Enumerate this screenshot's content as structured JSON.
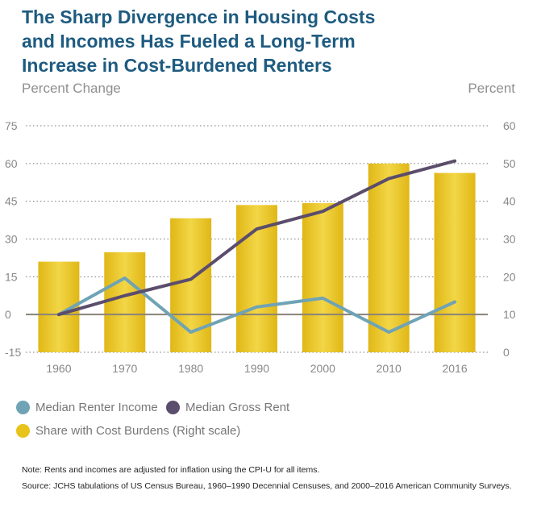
{
  "title_lines": [
    "The Sharp Divergence in Housing Costs",
    "and Incomes Has Fueled a Long-Term",
    "Increase in Cost-Burdened Renters"
  ],
  "left_axis_title": "Percent Change",
  "right_axis_title": "Percent",
  "chart_data": {
    "type": "bar",
    "title": "The Sharp Divergence in Housing Costs and Incomes Has Fueled a Long-Term Increase in Cost-Burdened Renters",
    "categories": [
      "1960",
      "1970",
      "1980",
      "1990",
      "2000",
      "2010",
      "2016"
    ],
    "left_axis": {
      "label": "Percent Change",
      "ticks": [
        "75",
        "60",
        "45",
        "30",
        "15",
        "0",
        "-15"
      ],
      "ylim": [
        -15,
        75
      ]
    },
    "right_axis": {
      "label": "Percent",
      "ticks": [
        "60",
        "50",
        "40",
        "30",
        "20",
        "10",
        "0"
      ],
      "ylim": [
        0,
        60
      ]
    },
    "bars": {
      "name": "Share with Cost Burdens (Right scale)",
      "axis": "right",
      "color": "#e8c31a",
      "values": [
        24,
        26.5,
        35.5,
        39,
        39.5,
        50,
        47.5
      ]
    },
    "series": [
      {
        "name": "Median Renter Income",
        "axis": "left",
        "color": "#6fa3b5",
        "values": [
          0,
          14.5,
          -7,
          3,
          6.5,
          -7,
          5
        ]
      },
      {
        "name": "Median Gross Rent",
        "axis": "left",
        "color": "#5b4d6c",
        "values": [
          0,
          7.5,
          14,
          34,
          41,
          54,
          61
        ]
      }
    ],
    "grid": "dotted horizontal",
    "legend_placement": "bottom-left"
  },
  "legend": [
    {
      "label": "Median Renter Income",
      "color": "#6fa3b5"
    },
    {
      "label": "Median Gross Rent",
      "color": "#5b4d6c"
    },
    {
      "label": "Share with Cost Burdens (Right scale)",
      "color": "#e8c31a"
    }
  ],
  "notes": [
    "Note: Rents and incomes are adjusted for inflation using the CPI-U for all items.",
    "Source: JCHS tabulations of US Census Bureau, 1960–1990 Decennial Censuses, and 2000–2016 American Community Surveys."
  ]
}
